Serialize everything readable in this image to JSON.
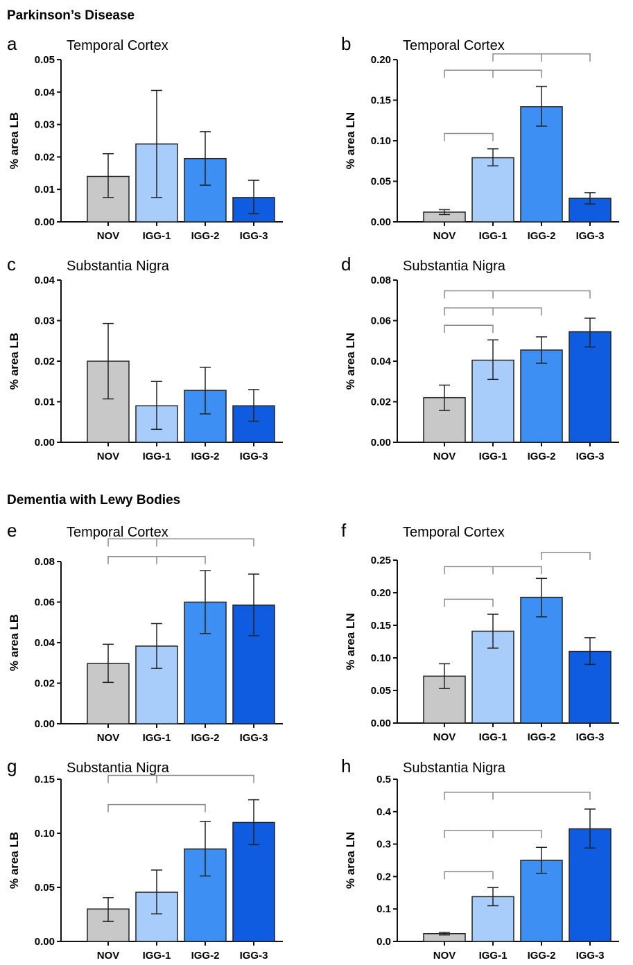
{
  "section_titles": [
    "Parkinson’s Disease",
    "Dementia with Lewy Bodies"
  ],
  "colors": {
    "NOV": "#c8c8c8",
    "IGG-1": "#a9cdfb",
    "IGG-2": "#3d8ff3",
    "IGG-3": "#0f5ce0",
    "axis": "#111111",
    "bracket": "#8a8a8a"
  },
  "chart_data": [
    {
      "panel": "a",
      "title": "Temporal Cortex",
      "type": "bar",
      "categories": [
        "NOV",
        "IGG-1",
        "IGG-2",
        "IGG-3"
      ],
      "values": [
        0.014,
        0.024,
        0.0195,
        0.0075
      ],
      "err_low": [
        0.0075,
        0.0075,
        0.0113,
        0.0025
      ],
      "err_high": [
        0.021,
        0.0405,
        0.0278,
        0.0128
      ],
      "ylabel": "% area LB",
      "ylim": [
        0,
        0.05
      ],
      "yticks": [
        "0.00",
        "0.01",
        "0.02",
        "0.03",
        "0.04",
        "0.05"
      ],
      "brackets": []
    },
    {
      "panel": "b",
      "title": "Temporal Cortex",
      "type": "bar",
      "categories": [
        "NOV",
        "IGG-1",
        "IGG-2",
        "IGG-3"
      ],
      "values": [
        0.012,
        0.079,
        0.142,
        0.029
      ],
      "err_low": [
        0.009,
        0.069,
        0.118,
        0.022
      ],
      "err_high": [
        0.015,
        0.09,
        0.167,
        0.036
      ],
      "ylabel": "% area LN",
      "ylim": [
        0,
        0.2
      ],
      "yticks": [
        "0.00",
        "0.05",
        "0.10",
        "0.15",
        "0.20"
      ],
      "brackets": [
        {
          "from": 0,
          "to": 1,
          "y": 0.109,
          "mid": false
        },
        {
          "from": 0,
          "to": 2,
          "y": 0.187,
          "mid": true
        },
        {
          "from": 1,
          "to": 3,
          "y": 0.207,
          "mid": true
        }
      ]
    },
    {
      "panel": "c",
      "title": "Substantia Nigra",
      "type": "bar",
      "categories": [
        "NOV",
        "IGG-1",
        "IGG-2",
        "IGG-3"
      ],
      "values": [
        0.02,
        0.009,
        0.0128,
        0.009
      ],
      "err_low": [
        0.0107,
        0.0032,
        0.007,
        0.0052
      ],
      "err_high": [
        0.0293,
        0.015,
        0.0185,
        0.013
      ],
      "ylabel": "% area LB",
      "ylim": [
        0,
        0.04
      ],
      "yticks": [
        "0.00",
        "0.01",
        "0.02",
        "0.03",
        "0.04"
      ],
      "brackets": []
    },
    {
      "panel": "d",
      "title": "Substantia Nigra",
      "type": "bar",
      "categories": [
        "NOV",
        "IGG-1",
        "IGG-2",
        "IGG-3"
      ],
      "values": [
        0.022,
        0.0405,
        0.0455,
        0.0545
      ],
      "err_low": [
        0.0157,
        0.031,
        0.039,
        0.047
      ],
      "err_high": [
        0.0282,
        0.0505,
        0.052,
        0.0612
      ],
      "ylabel": "% area LN",
      "ylim": [
        0,
        0.08
      ],
      "yticks": [
        "0.00",
        "0.02",
        "0.04",
        "0.06",
        "0.08"
      ],
      "brackets": [
        {
          "from": 0,
          "to": 1,
          "y": 0.0577,
          "mid": false
        },
        {
          "from": 0,
          "to": 2,
          "y": 0.0663,
          "mid": true
        },
        {
          "from": 0,
          "to": 3,
          "y": 0.0747,
          "mid": true
        }
      ]
    },
    {
      "panel": "e",
      "title": "Temporal Cortex",
      "type": "bar",
      "categories": [
        "NOV",
        "IGG-1",
        "IGG-2",
        "IGG-3"
      ],
      "values": [
        0.0297,
        0.0383,
        0.06,
        0.0585
      ],
      "err_low": [
        0.0204,
        0.0273,
        0.0445,
        0.0434
      ],
      "err_high": [
        0.0392,
        0.0494,
        0.0755,
        0.0738
      ],
      "ylabel": "% area LB",
      "ylim": [
        0,
        0.08
      ],
      "yticks": [
        "0.00",
        "0.02",
        "0.04",
        "0.06",
        "0.08"
      ],
      "brackets": [
        {
          "from": 0,
          "to": 2,
          "y": 0.0825,
          "mid": true
        },
        {
          "from": 0,
          "to": 3,
          "y": 0.0912,
          "mid": true
        }
      ]
    },
    {
      "panel": "f",
      "title": "Temporal Cortex",
      "type": "bar",
      "categories": [
        "NOV",
        "IGG-1",
        "IGG-2",
        "IGG-3"
      ],
      "values": [
        0.072,
        0.141,
        0.193,
        0.11
      ],
      "err_low": [
        0.053,
        0.115,
        0.163,
        0.09
      ],
      "err_high": [
        0.091,
        0.167,
        0.222,
        0.131
      ],
      "ylabel": "% area LN",
      "ylim": [
        0,
        0.25
      ],
      "yticks": [
        "0.00",
        "0.05",
        "0.10",
        "0.15",
        "0.20",
        "0.25"
      ],
      "brackets": [
        {
          "from": 0,
          "to": 1,
          "y": 0.19,
          "mid": false
        },
        {
          "from": 0,
          "to": 2,
          "y": 0.24,
          "mid": true
        },
        {
          "from": 2,
          "to": 3,
          "y": 0.262,
          "mid": false
        }
      ]
    },
    {
      "panel": "g",
      "title": "Substantia Nigra",
      "type": "bar",
      "categories": [
        "NOV",
        "IGG-1",
        "IGG-2",
        "IGG-3"
      ],
      "values": [
        0.03,
        0.0455,
        0.0855,
        0.11
      ],
      "err_low": [
        0.0185,
        0.0255,
        0.0605,
        0.0895
      ],
      "err_high": [
        0.0405,
        0.066,
        0.111,
        0.131
      ],
      "ylabel": "% area LB",
      "ylim": [
        0,
        0.15
      ],
      "yticks": [
        "0.00",
        "0.05",
        "0.10",
        "0.15"
      ],
      "brackets": [
        {
          "from": 0,
          "to": 2,
          "y": 0.1265,
          "mid": false
        },
        {
          "from": 0,
          "to": 3,
          "y": 0.1535,
          "mid": true
        }
      ]
    },
    {
      "panel": "h",
      "title": "Substantia Nigra",
      "type": "bar",
      "categories": [
        "NOV",
        "IGG-1",
        "IGG-2",
        "IGG-3"
      ],
      "values": [
        0.024,
        0.138,
        0.25,
        0.347
      ],
      "err_low": [
        0.02,
        0.11,
        0.21,
        0.288
      ],
      "err_high": [
        0.028,
        0.166,
        0.29,
        0.408
      ],
      "ylabel": "% area LN",
      "ylim": [
        0,
        0.5
      ],
      "yticks": [
        "0.0",
        "0.1",
        "0.2",
        "0.3",
        "0.4",
        "0.5"
      ],
      "brackets": [
        {
          "from": 0,
          "to": 1,
          "y": 0.215,
          "mid": false
        },
        {
          "from": 0,
          "to": 2,
          "y": 0.342,
          "mid": true
        },
        {
          "from": 0,
          "to": 3,
          "y": 0.46,
          "mid": true
        }
      ]
    }
  ]
}
